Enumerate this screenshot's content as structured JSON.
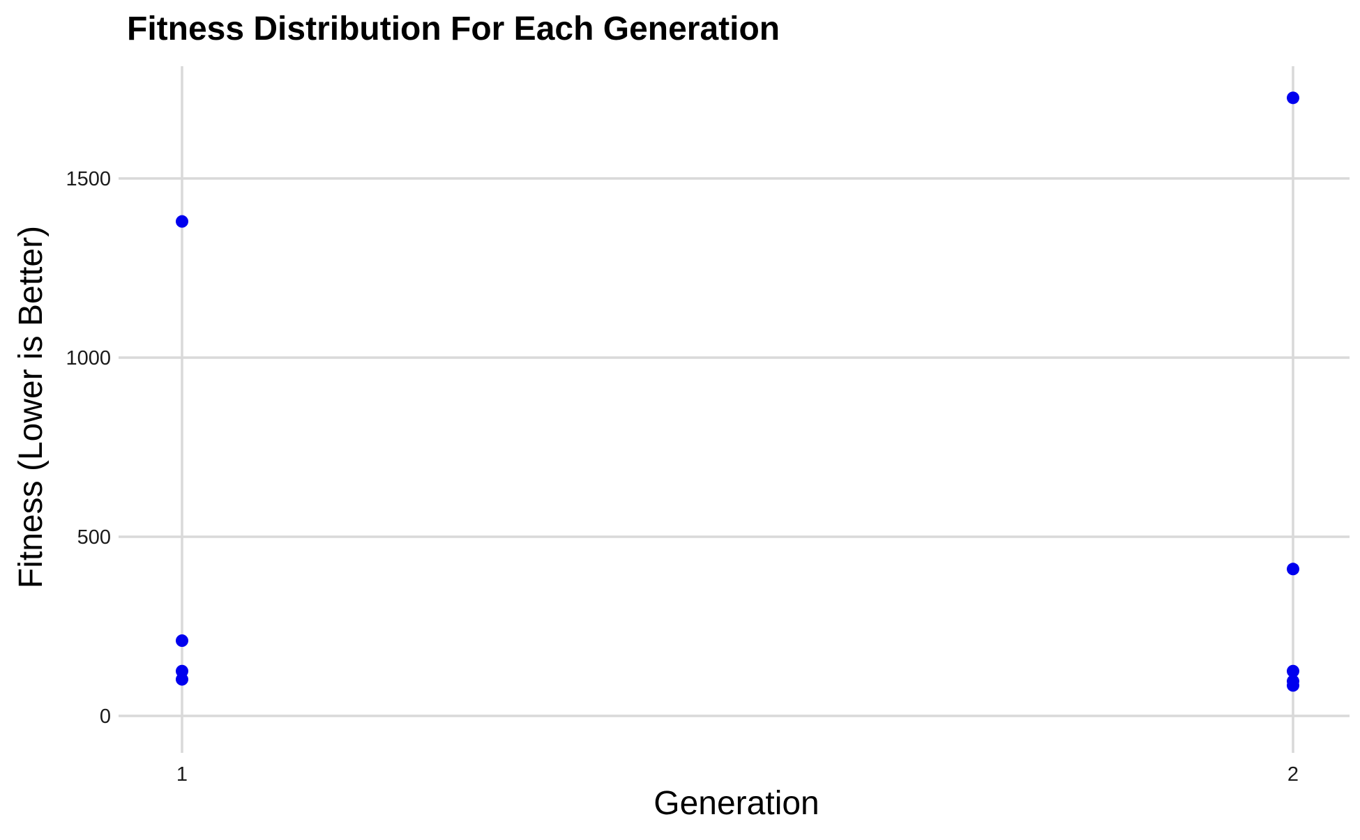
{
  "chart_data": {
    "type": "scatter",
    "title": "Fitness Distribution For Each Generation",
    "xlabel": "Generation",
    "ylabel": "Fitness (Lower is Better)",
    "x_ticks": [
      1,
      2
    ],
    "y_ticks": [
      0,
      500,
      1000,
      1500
    ],
    "xlim": [
      0.95,
      2.05
    ],
    "ylim": [
      -115,
      1800
    ],
    "grid": true,
    "legend": "none",
    "point_color": "#0000ee",
    "grid_color": "#d9d9d9",
    "series": [
      {
        "points": [
          {
            "x": 1,
            "y": 1380
          },
          {
            "x": 1,
            "y": 210
          },
          {
            "x": 1,
            "y": 125
          },
          {
            "x": 1,
            "y": 102
          },
          {
            "x": 2,
            "y": 1725
          },
          {
            "x": 2,
            "y": 410
          },
          {
            "x": 2,
            "y": 125
          },
          {
            "x": 2,
            "y": 97
          },
          {
            "x": 2,
            "y": 85
          }
        ]
      }
    ]
  }
}
